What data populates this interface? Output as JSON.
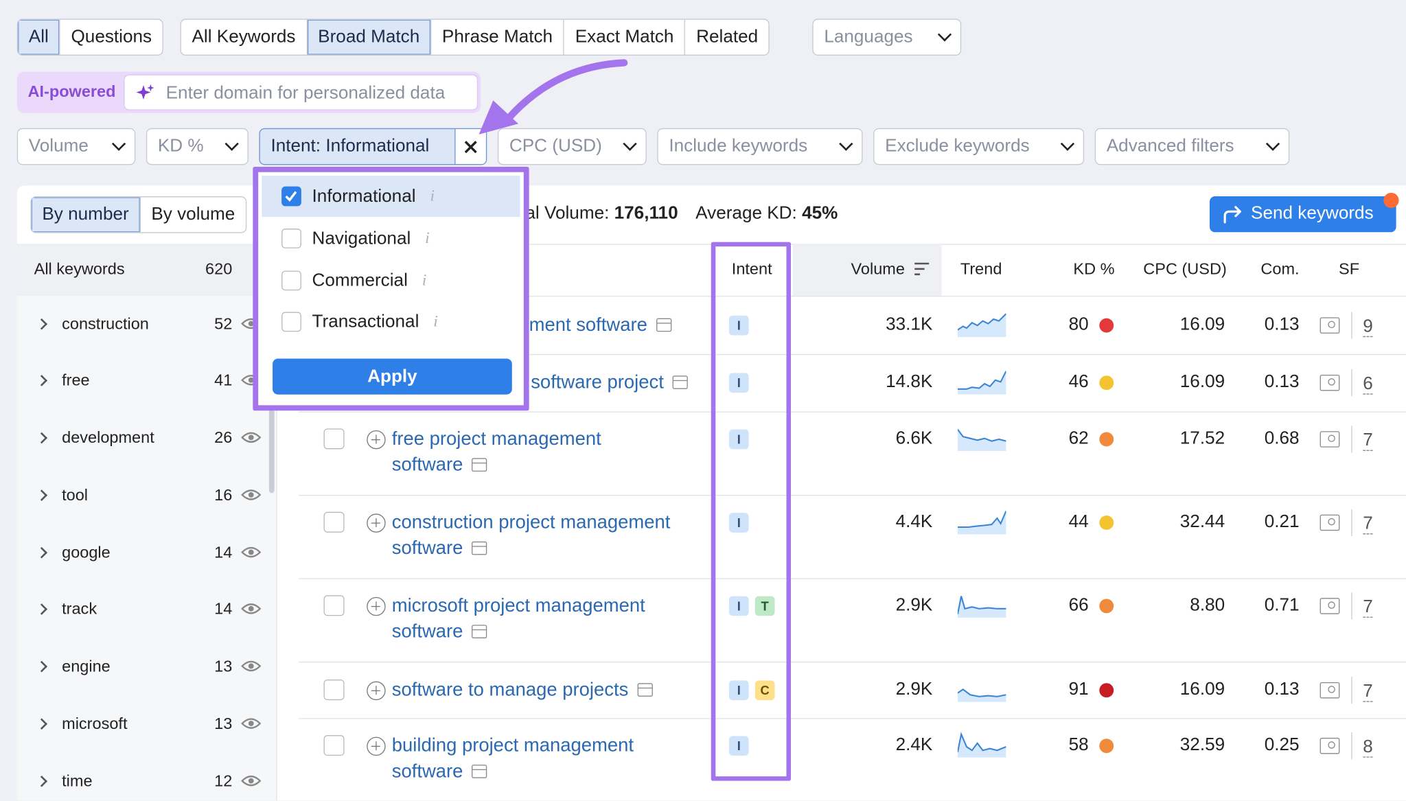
{
  "tabs_left": [
    "All",
    "Questions"
  ],
  "tabs_match": [
    "All Keywords",
    "Broad Match",
    "Phrase Match",
    "Exact Match",
    "Related"
  ],
  "languages_label": "Languages",
  "ai": {
    "badge": "AI-powered",
    "placeholder": "Enter domain for personalized data"
  },
  "filters": {
    "volume": "Volume",
    "kd": "KD %",
    "intent": "Intent: Informational",
    "cpc": "CPC (USD)",
    "include": "Include keywords",
    "exclude": "Exclude keywords",
    "advanced": "Advanced filters"
  },
  "view_toggle": [
    "By number",
    "By volume"
  ],
  "summary": {
    "volume_label": "al Volume:",
    "volume_value": "176,110",
    "kd_label": "Average KD:",
    "kd_value": "45%"
  },
  "send_button": "Send keywords",
  "sidebar": {
    "header_label": "All keywords",
    "header_count": "620",
    "items": [
      {
        "label": "construction",
        "count": "52"
      },
      {
        "label": "free",
        "count": "41"
      },
      {
        "label": "development",
        "count": "26"
      },
      {
        "label": "tool",
        "count": "16"
      },
      {
        "label": "google",
        "count": "14"
      },
      {
        "label": "track",
        "count": "14"
      },
      {
        "label": "engine",
        "count": "13"
      },
      {
        "label": "microsoft",
        "count": "13"
      },
      {
        "label": "time",
        "count": "12"
      }
    ]
  },
  "columns": [
    "Intent",
    "Volume",
    "Trend",
    "KD %",
    "CPC (USD)",
    "Com.",
    "SF"
  ],
  "rows": [
    {
      "keyword": [
        "ment software"
      ],
      "intents": [
        "I"
      ],
      "volume": "33.1K",
      "kd": "80",
      "kd_color": "#e5383b",
      "cpc": "16.09",
      "com": "0.13",
      "sf": "9"
    },
    {
      "keyword": [
        "software project"
      ],
      "intents": [
        "I"
      ],
      "volume": "14.8K",
      "kd": "46",
      "kd_color": "#f4c430",
      "cpc": "16.09",
      "com": "0.13",
      "sf": "6"
    },
    {
      "keyword": [
        "free project management",
        "software"
      ],
      "intents": [
        "I"
      ],
      "volume": "6.6K",
      "kd": "62",
      "kd_color": "#f08a3c",
      "cpc": "17.52",
      "com": "0.68",
      "sf": "7"
    },
    {
      "keyword": [
        "construction project management",
        "software"
      ],
      "intents": [
        "I"
      ],
      "volume": "4.4K",
      "kd": "44",
      "kd_color": "#f4c430",
      "cpc": "32.44",
      "com": "0.21",
      "sf": "7"
    },
    {
      "keyword": [
        "microsoft project management",
        "software"
      ],
      "intents": [
        "I",
        "T"
      ],
      "volume": "2.9K",
      "kd": "66",
      "kd_color": "#f08a3c",
      "cpc": "8.80",
      "com": "0.71",
      "sf": "7"
    },
    {
      "keyword": [
        "software to manage projects"
      ],
      "intents": [
        "I",
        "C"
      ],
      "volume": "2.9K",
      "kd": "91",
      "kd_color": "#c81d25",
      "cpc": "16.09",
      "com": "0.13",
      "sf": "7"
    },
    {
      "keyword": [
        "building project management",
        "software"
      ],
      "intents": [
        "I"
      ],
      "volume": "2.4K",
      "kd": "58",
      "kd_color": "#f08a3c",
      "cpc": "32.59",
      "com": "0.25",
      "sf": "8"
    }
  ],
  "intent_dropdown": {
    "options": [
      {
        "label": "Informational",
        "checked": true
      },
      {
        "label": "Navigational",
        "checked": false
      },
      {
        "label": "Commercial",
        "checked": false
      },
      {
        "label": "Transactional",
        "checked": false
      }
    ],
    "apply": "Apply"
  },
  "colors": {
    "highlight": "#a374ec",
    "primary": "#2e7fe8",
    "link": "#2a68b2"
  }
}
